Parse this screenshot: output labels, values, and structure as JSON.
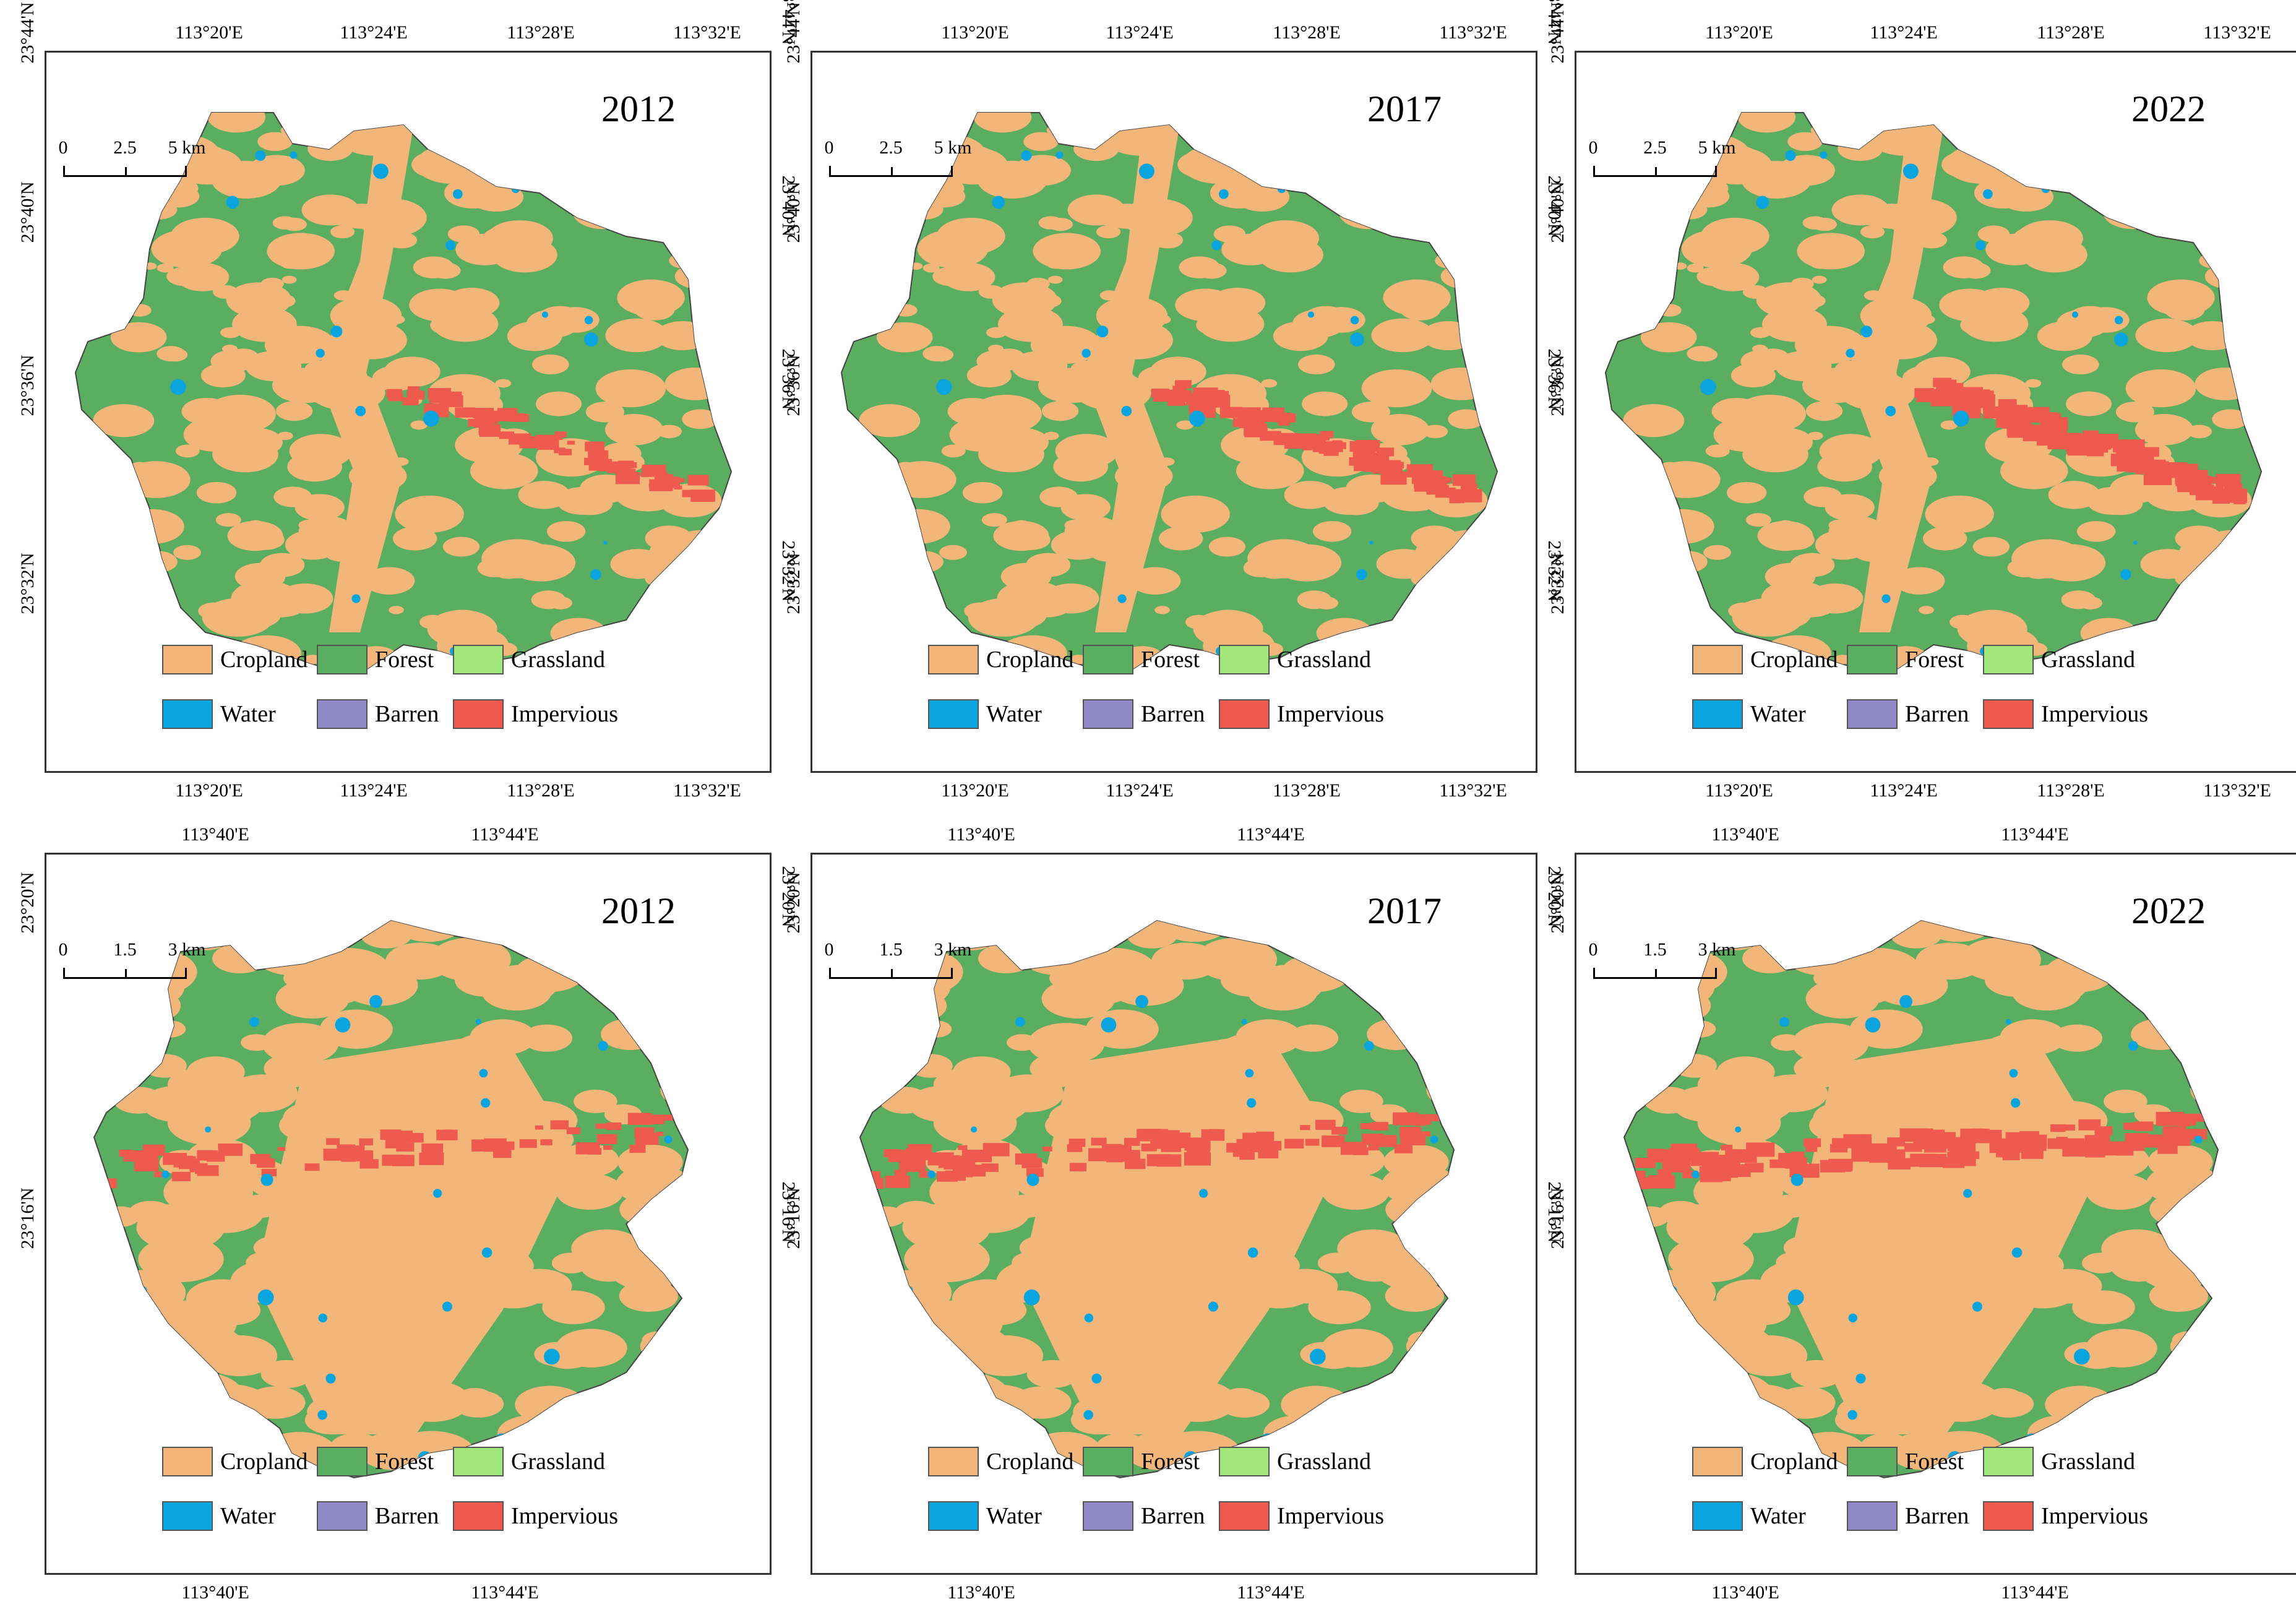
{
  "land_cover_classes": [
    {
      "label": "Cropland",
      "color": "#F2B57A"
    },
    {
      "label": "Forest",
      "color": "#5BAD5F"
    },
    {
      "label": "Grassland",
      "color": "#A3E67A"
    },
    {
      "label": "Water",
      "color": "#0AA5DE"
    },
    {
      "label": "Barren",
      "color": "#9088C4"
    },
    {
      "label": "Impervious",
      "color": "#EF5A4E"
    }
  ],
  "rows": [
    {
      "region": "top",
      "lon_ticks": [
        "113°20'E",
        "113°24'E",
        "113°28'E",
        "113°32'E"
      ],
      "lat_ticks": [
        "23°44'N",
        "23°40'N",
        "23°36'N",
        "23°32'N"
      ],
      "scale_labels": [
        "0",
        "2.5",
        "5 km"
      ],
      "years": [
        "2012",
        "2017",
        "2022"
      ]
    },
    {
      "region": "bottom",
      "lon_ticks": [
        "113°40'E",
        "113°44'E"
      ],
      "lat_ticks": [
        "23°20'N",
        "23°16'N"
      ],
      "scale_labels": [
        "0",
        "1.5",
        "3 km"
      ],
      "years": [
        "2012",
        "2017",
        "2022"
      ]
    }
  ]
}
